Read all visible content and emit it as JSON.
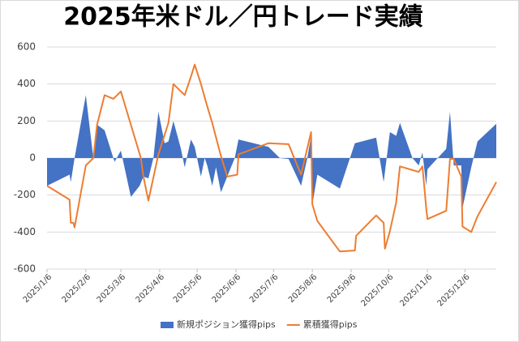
{
  "chart_data": {
    "type": "area-line",
    "title": "2025年米ドル／円トレード実績",
    "xlim": [
      "2025/1/6",
      "2025/12/31"
    ],
    "xticks": [
      "2025/1/6",
      "2025/2/6",
      "2025/3/6",
      "2025/4/6",
      "2025/5/6",
      "2025/6/6",
      "2025/7/6",
      "2025/8/6",
      "2025/9/6",
      "2025/10/6",
      "2025/11/6",
      "2025/12/6"
    ],
    "ylim": [
      -600,
      600
    ],
    "yticks": [
      -600,
      -400,
      -200,
      0,
      200,
      400,
      600
    ],
    "grid": true,
    "legend": "bottom",
    "series": [
      {
        "name": "新規ポジション獲得pips",
        "kind": "area",
        "color": "#4472c4",
        "x": [
          "2025/1/6",
          "2025/1/24",
          "2025/1/25",
          "2025/1/28",
          "2025/2/6",
          "2025/2/12",
          "2025/2/15",
          "2025/2/21",
          "2025/2/28",
          "2025/3/1",
          "2025/3/6",
          "2025/3/14",
          "2025/3/21",
          "2025/3/24",
          "2025/3/28",
          "2025/4/1",
          "2025/4/5",
          "2025/4/10",
          "2025/4/13",
          "2025/4/17",
          "2025/4/23",
          "2025/4/26",
          "2025/5/1",
          "2025/5/4",
          "2025/5/9",
          "2025/5/12",
          "2025/5/14",
          "2025/5/18",
          "2025/5/21",
          "2025/5/25",
          "2025/5/30",
          "2025/6/5",
          "2025/6/8",
          "2025/7/2",
          "2025/7/11",
          "2025/7/18",
          "2025/7/28",
          "2025/8/2",
          "2025/8/5",
          "2025/8/6",
          "2025/8/10",
          "2025/8/28",
          "2025/9/9",
          "2025/9/26",
          "2025/10/2",
          "2025/10/7",
          "2025/10/12",
          "2025/10/15",
          "2025/10/25",
          "2025/10/30",
          "2025/11/2",
          "2025/11/5",
          "2025/11/6",
          "2025/11/21",
          "2025/11/24",
          "2025/11/27",
          "2025/12/3",
          "2025/12/4",
          "2025/12/11",
          "2025/12/16",
          "2025/12/31"
        ],
        "values": [
          -150,
          -90,
          -130,
          0,
          340,
          0,
          180,
          150,
          0,
          -20,
          40,
          -210,
          -150,
          -100,
          -110,
          0,
          250,
          80,
          90,
          200,
          50,
          -50,
          100,
          60,
          -100,
          0,
          -40,
          -150,
          -50,
          -185,
          -100,
          0,
          100,
          60,
          0,
          -5,
          -150,
          0,
          120,
          -250,
          -90,
          -165,
          80,
          110,
          -130,
          140,
          120,
          190,
          0,
          -40,
          30,
          -150,
          -60,
          50,
          250,
          -40,
          -40,
          -270,
          -50,
          90,
          185
        ]
      },
      {
        "name": "累積獲得pips",
        "kind": "line",
        "color": "#ed7d31",
        "x": [
          "2025/1/6",
          "2025/1/24",
          "2025/1/25",
          "2025/1/27",
          "2025/1/28",
          "2025/2/6",
          "2025/2/12",
          "2025/2/15",
          "2025/2/21",
          "2025/2/28",
          "2025/3/6",
          "2025/3/22",
          "2025/3/24",
          "2025/3/28",
          "2025/4/5",
          "2025/4/13",
          "2025/4/17",
          "2025/4/26",
          "2025/5/1",
          "2025/5/4",
          "2025/5/9",
          "2025/5/14",
          "2025/5/18",
          "2025/5/25",
          "2025/5/30",
          "2025/6/7",
          "2025/6/8",
          "2025/7/2",
          "2025/7/18",
          "2025/7/28",
          "2025/8/5",
          "2025/8/6",
          "2025/8/10",
          "2025/8/28",
          "2025/9/9",
          "2025/9/10",
          "2025/9/26",
          "2025/10/2",
          "2025/10/3",
          "2025/10/7",
          "2025/10/12",
          "2025/10/15",
          "2025/10/30",
          "2025/11/2",
          "2025/11/5",
          "2025/11/6",
          "2025/11/21",
          "2025/11/24",
          "2025/11/27",
          "2025/12/3",
          "2025/12/4",
          "2025/12/11",
          "2025/12/16",
          "2025/12/31"
        ],
        "values": [
          -150,
          -225,
          -350,
          -350,
          -375,
          -40,
          0,
          180,
          340,
          320,
          360,
          0,
          -100,
          -230,
          20,
          190,
          400,
          340,
          440,
          505,
          400,
          280,
          190,
          10,
          -100,
          -90,
          20,
          80,
          75,
          -90,
          140,
          -250,
          -340,
          -505,
          -500,
          -420,
          -310,
          -350,
          -490,
          -395,
          -240,
          -45,
          -75,
          -45,
          -270,
          -330,
          -285,
          -5,
          -5,
          -100,
          -370,
          -400,
          -315,
          -130
        ]
      }
    ]
  }
}
